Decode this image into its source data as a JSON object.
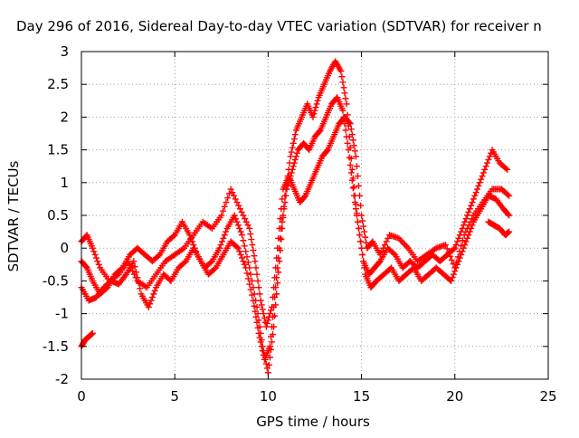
{
  "chart_data": {
    "type": "scatter",
    "title": "Day 296 of 2016, Sidereal Day-to-day VTEC variation (SDTVAR) for receiver n",
    "xlabel": "GPS time / hours",
    "ylabel": "SDTVAR / TECUs",
    "xlim": [
      0,
      25
    ],
    "ylim": [
      -2,
      3
    ],
    "x_ticks": [
      "0",
      "5",
      "10",
      "15",
      "20",
      "25"
    ],
    "y_ticks": [
      "-2",
      "-1.5",
      "-1",
      "-0.5",
      "0",
      "0.5",
      "1",
      "1.5",
      "2",
      "2.5",
      "3"
    ],
    "grid": true,
    "marker": "+",
    "color": "#ff0000",
    "series": [
      {
        "x": [
          0.0,
          0.3,
          0.6,
          1.0,
          1.4,
          1.8,
          2.2,
          2.6,
          3.0,
          3.4,
          3.8,
          4.2,
          4.6,
          5.0,
          5.4,
          5.8,
          6.2,
          6.6,
          7.0,
          7.4,
          7.8,
          8.2,
          8.6,
          9.0,
          9.4,
          9.7,
          10.0,
          10.3,
          10.6,
          10.9,
          11.2,
          11.5,
          11.8,
          12.1,
          12.4,
          12.7,
          13.0,
          13.3,
          13.6,
          13.9,
          14.2,
          14.5,
          14.8,
          15.1,
          15.4,
          15.7,
          16.0,
          16.4,
          16.8,
          17.2,
          17.6,
          18.0,
          18.4,
          18.8,
          19.2,
          19.6,
          20.0,
          20.4,
          20.8,
          21.2,
          21.6,
          22.0,
          22.4,
          22.8
        ],
        "y": [
          -0.2,
          -0.3,
          -0.5,
          -0.7,
          -0.6,
          -0.4,
          -0.3,
          -0.1,
          0.0,
          -0.1,
          -0.2,
          -0.1,
          0.1,
          0.2,
          0.4,
          0.2,
          -0.1,
          -0.3,
          -0.2,
          0.0,
          0.3,
          0.5,
          0.2,
          -0.3,
          -0.9,
          -1.5,
          -1.9,
          -1.2,
          -0.2,
          0.8,
          1.4,
          1.8,
          2.0,
          2.2,
          2.0,
          2.3,
          2.5,
          2.7,
          2.85,
          2.7,
          2.2,
          1.2,
          0.4,
          -0.2,
          -0.4,
          -0.3,
          -0.2,
          0.0,
          -0.1,
          -0.3,
          -0.2,
          -0.3,
          -0.2,
          -0.1,
          -0.2,
          -0.1,
          0.0,
          0.3,
          0.6,
          0.9,
          1.2,
          1.5,
          1.3,
          1.2
        ]
      },
      {
        "x": [
          0.0,
          0.4,
          0.8,
          1.2,
          1.6,
          2.0,
          2.4,
          2.8,
          3.2,
          3.6,
          4.0,
          4.4,
          4.8,
          5.2,
          5.6,
          6.0,
          6.4,
          6.8,
          7.2,
          7.6,
          8.0,
          8.4,
          8.8,
          9.2,
          9.5,
          9.8,
          10.1,
          10.4,
          10.7,
          11.0,
          11.3,
          11.6,
          11.9,
          12.2,
          12.5,
          12.8,
          13.1,
          13.4,
          13.7,
          14.0,
          14.3,
          14.6,
          14.9,
          15.2,
          15.5,
          15.8,
          16.2,
          16.6,
          17.0,
          17.4,
          17.8,
          18.2,
          18.6,
          19.0,
          19.4,
          19.8,
          20.2,
          20.6,
          21.0,
          21.4,
          21.8,
          22.2,
          22.6,
          22.9
        ],
        "y": [
          -0.6,
          -0.8,
          -0.75,
          -0.6,
          -0.5,
          -0.55,
          -0.4,
          -0.2,
          -0.7,
          -0.9,
          -0.6,
          -0.4,
          -0.5,
          -0.3,
          -0.2,
          0.0,
          -0.2,
          -0.4,
          -0.3,
          -0.1,
          0.1,
          0.0,
          -0.3,
          -0.8,
          -1.3,
          -1.7,
          -1.5,
          -0.6,
          0.3,
          0.9,
          1.2,
          1.5,
          1.6,
          1.5,
          1.7,
          1.8,
          2.0,
          2.2,
          2.3,
          2.1,
          1.5,
          0.8,
          0.2,
          -0.4,
          -0.6,
          -0.5,
          -0.4,
          -0.3,
          -0.5,
          -0.4,
          -0.3,
          -0.5,
          -0.4,
          -0.3,
          -0.4,
          -0.5,
          -0.2,
          0.1,
          0.4,
          0.6,
          0.8,
          0.75,
          0.6,
          0.5
        ]
      },
      {
        "x": [
          0.0,
          0.3,
          0.6,
          1.0,
          1.5,
          2.0,
          2.5,
          3.0,
          3.5,
          4.0,
          4.5,
          5.0,
          5.5,
          6.0,
          6.5,
          7.0,
          7.5,
          8.0,
          8.5,
          9.0,
          9.3,
          9.6,
          9.9,
          10.2,
          10.5,
          10.8,
          11.1,
          11.4,
          11.7,
          12.0,
          12.3,
          12.6,
          12.9,
          13.2,
          13.5,
          13.8,
          14.1,
          14.4,
          14.7,
          15.0,
          15.3,
          15.6,
          16.0,
          16.5,
          17.0,
          17.5,
          18.0,
          18.5,
          19.0,
          19.5,
          20.0,
          20.5,
          21.0,
          21.5,
          22.0,
          22.5,
          22.9
        ],
        "y": [
          0.1,
          0.2,
          0.0,
          -0.3,
          -0.5,
          -0.4,
          -0.2,
          -0.5,
          -0.6,
          -0.4,
          -0.2,
          -0.1,
          0.0,
          0.2,
          0.4,
          0.3,
          0.5,
          0.9,
          0.6,
          0.3,
          -0.2,
          -0.8,
          -1.2,
          -0.9,
          0.0,
          0.9,
          1.1,
          0.9,
          0.7,
          0.8,
          1.0,
          1.2,
          1.4,
          1.5,
          1.7,
          1.9,
          2.0,
          1.9,
          1.4,
          0.5,
          0.0,
          0.1,
          -0.1,
          0.2,
          0.15,
          0.0,
          -0.2,
          -0.1,
          0.0,
          0.05,
          -0.3,
          0.2,
          0.5,
          0.7,
          0.9,
          0.9,
          0.8
        ]
      },
      {
        "x": [
          0.0,
          0.2,
          0.4,
          0.6
        ],
        "y": [
          -1.5,
          -1.4,
          -1.35,
          -1.3
        ]
      },
      {
        "x": [
          21.8,
          22.1,
          22.4,
          22.7,
          22.9
        ],
        "y": [
          0.4,
          0.35,
          0.3,
          0.2,
          0.25
        ]
      }
    ]
  }
}
